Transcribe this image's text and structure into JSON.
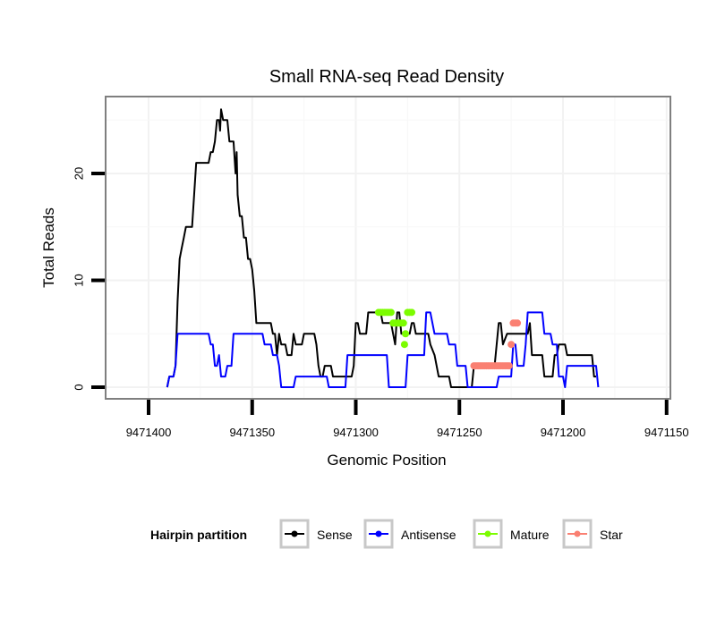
{
  "chart_data": {
    "type": "line",
    "title": "Small RNA-seq Read Density",
    "xlabel": "Genomic Position",
    "ylabel": "Total Reads",
    "x_reversed": true,
    "xlim": [
      9471410,
      9471147
    ],
    "ylim": [
      -1,
      27
    ],
    "x_ticks": [
      9471400,
      9471350,
      9471300,
      9471250,
      9471200,
      9471150
    ],
    "x_tick_labels": [
      "9471400",
      "9471350",
      "9471300",
      "9471250",
      "9471200",
      "9471150"
    ],
    "y_ticks": [
      0,
      10,
      20
    ],
    "y_tick_labels": [
      "0",
      "10",
      "20"
    ],
    "grid": true,
    "legend": {
      "title": "Hairpin partition",
      "position": "bottom",
      "entries": [
        {
          "name": "Sense",
          "color": "#000000"
        },
        {
          "name": "Antisense",
          "color": "#0000ff"
        },
        {
          "name": "Mature",
          "color": "#7cfc00"
        },
        {
          "name": "Star",
          "color": "#fa8072"
        }
      ]
    },
    "series": [
      {
        "name": "Sense",
        "color": "#000000",
        "kind": "line",
        "points": [
          [
            9471391,
            0
          ],
          [
            9471390,
            1
          ],
          [
            9471388,
            1
          ],
          [
            9471387,
            2
          ],
          [
            9471386,
            8
          ],
          [
            9471385,
            12
          ],
          [
            9471384,
            13
          ],
          [
            9471383,
            14
          ],
          [
            9471382,
            15
          ],
          [
            9471379,
            15
          ],
          [
            9471378,
            18
          ],
          [
            9471377,
            21
          ],
          [
            9471371,
            21
          ],
          [
            9471370,
            22
          ],
          [
            9471369,
            22
          ],
          [
            9471368,
            23
          ],
          [
            9471367,
            25
          ],
          [
            9471366,
            25
          ],
          [
            9471365.5,
            24
          ],
          [
            9471365,
            26
          ],
          [
            9471364,
            25
          ],
          [
            9471362,
            25
          ],
          [
            9471361,
            23
          ],
          [
            9471359,
            23
          ],
          [
            9471358,
            20
          ],
          [
            9471357.5,
            22
          ],
          [
            9471357,
            18
          ],
          [
            9471356,
            16
          ],
          [
            9471355,
            16
          ],
          [
            9471354,
            14
          ],
          [
            9471353,
            14
          ],
          [
            9471352,
            12
          ],
          [
            9471351,
            12
          ],
          [
            9471350,
            11
          ],
          [
            9471349,
            9
          ],
          [
            9471348,
            6
          ],
          [
            9471341,
            6
          ],
          [
            9471340,
            5
          ],
          [
            9471339,
            5
          ],
          [
            9471338,
            3
          ],
          [
            9471337,
            5
          ],
          [
            9471336,
            4
          ],
          [
            9471334,
            4
          ],
          [
            9471333,
            3
          ],
          [
            9471331,
            3
          ],
          [
            9471330,
            5
          ],
          [
            9471329,
            4
          ],
          [
            9471326,
            4
          ],
          [
            9471325,
            5
          ],
          [
            9471320,
            5
          ],
          [
            9471319,
            4
          ],
          [
            9471318,
            2
          ],
          [
            9471317,
            1
          ],
          [
            9471316,
            1
          ],
          [
            9471315,
            2
          ],
          [
            9471312,
            2
          ],
          [
            9471311,
            1
          ],
          [
            9471302,
            1
          ],
          [
            9471301,
            2
          ],
          [
            9471300,
            6
          ],
          [
            9471299,
            6
          ],
          [
            9471298,
            5
          ],
          [
            9471295,
            5
          ],
          [
            9471294,
            7
          ],
          [
            9471288,
            7
          ],
          [
            9471287,
            6
          ],
          [
            9471283,
            6
          ],
          [
            9471282,
            5
          ],
          [
            9471281,
            4
          ],
          [
            9471280,
            7
          ],
          [
            9471279,
            7
          ],
          [
            9471278,
            5
          ],
          [
            9471274,
            5
          ],
          [
            9471273,
            6
          ],
          [
            9471272,
            6
          ],
          [
            9471271,
            5
          ],
          [
            9471265,
            5
          ],
          [
            9471264,
            4
          ],
          [
            9471262,
            3
          ],
          [
            9471260,
            1
          ],
          [
            9471255,
            1
          ],
          [
            9471254,
            0
          ],
          [
            9471244,
            0
          ],
          [
            9471243,
            2
          ],
          [
            9471233,
            2
          ],
          [
            9471232,
            4
          ],
          [
            9471231,
            6
          ],
          [
            9471230,
            6
          ],
          [
            9471229,
            4
          ],
          [
            9471227,
            5
          ],
          [
            9471217,
            5
          ],
          [
            9471216,
            6
          ],
          [
            9471215,
            3
          ],
          [
            9471210,
            3
          ],
          [
            9471209,
            1
          ],
          [
            9471205,
            1
          ],
          [
            9471204,
            3
          ],
          [
            9471203,
            3
          ],
          [
            9471202,
            4
          ],
          [
            9471199,
            4
          ],
          [
            9471198,
            3
          ],
          [
            9471186,
            3
          ],
          [
            9471185,
            1
          ],
          [
            9471184,
            1
          ]
        ]
      },
      {
        "name": "Antisense",
        "color": "#0000ff",
        "kind": "line",
        "points": [
          [
            9471391,
            0
          ],
          [
            9471390,
            1
          ],
          [
            9471388,
            1
          ],
          [
            9471387,
            2
          ],
          [
            9471386,
            5
          ],
          [
            9471371,
            5
          ],
          [
            9471370,
            4
          ],
          [
            9471369,
            4
          ],
          [
            9471368,
            2
          ],
          [
            9471367,
            2
          ],
          [
            9471366,
            3
          ],
          [
            9471365,
            1
          ],
          [
            9471363,
            1
          ],
          [
            9471362,
            2
          ],
          [
            9471360,
            2
          ],
          [
            9471359,
            5
          ],
          [
            9471345,
            5
          ],
          [
            9471344,
            4
          ],
          [
            9471341,
            4
          ],
          [
            9471340,
            3
          ],
          [
            9471338,
            3
          ],
          [
            9471337,
            2
          ],
          [
            9471336,
            0
          ],
          [
            9471330,
            0
          ],
          [
            9471329,
            1
          ],
          [
            9471314,
            1
          ],
          [
            9471313,
            0
          ],
          [
            9471305,
            0
          ],
          [
            9471304,
            3
          ],
          [
            9471285,
            3
          ],
          [
            9471284,
            0
          ],
          [
            9471276,
            0
          ],
          [
            9471275,
            3
          ],
          [
            9471267,
            3
          ],
          [
            9471266,
            7
          ],
          [
            9471264,
            7
          ],
          [
            9471262,
            5
          ],
          [
            9471256,
            5
          ],
          [
            9471255,
            4
          ],
          [
            9471252,
            4
          ],
          [
            9471251,
            2
          ],
          [
            9471247,
            2
          ],
          [
            9471246,
            0
          ],
          [
            9471232,
            0
          ],
          [
            9471231,
            1
          ],
          [
            9471225,
            1
          ],
          [
            9471224,
            4
          ],
          [
            9471223,
            4
          ],
          [
            9471222,
            2
          ],
          [
            9471219,
            2
          ],
          [
            9471218,
            4
          ],
          [
            9471217,
            7
          ],
          [
            9471210,
            7
          ],
          [
            9471209,
            5
          ],
          [
            9471206,
            5
          ],
          [
            9471205,
            4
          ],
          [
            9471203,
            4
          ],
          [
            9471202,
            1
          ],
          [
            9471200,
            1
          ],
          [
            9471199,
            0
          ],
          [
            9471198,
            2
          ],
          [
            9471184,
            2
          ],
          [
            9471183,
            0
          ]
        ]
      },
      {
        "name": "Mature",
        "color": "#7cfc00",
        "kind": "points",
        "points": [
          [
            9471289,
            7
          ],
          [
            9471288,
            7
          ],
          [
            9471287,
            7
          ],
          [
            9471286,
            7
          ],
          [
            9471285,
            7
          ],
          [
            9471284,
            7
          ],
          [
            9471283,
            7
          ],
          [
            9471282,
            6
          ],
          [
            9471281,
            6
          ],
          [
            9471280,
            6
          ],
          [
            9471279,
            6
          ],
          [
            9471278,
            6
          ],
          [
            9471277,
            6
          ],
          [
            9471276,
            5
          ],
          [
            9471276.5,
            4
          ],
          [
            9471275,
            7
          ],
          [
            9471274,
            7
          ],
          [
            9471273,
            7
          ]
        ]
      },
      {
        "name": "Star",
        "color": "#fa8072",
        "kind": "points",
        "points": [
          [
            9471243,
            2
          ],
          [
            9471242,
            2
          ],
          [
            9471241,
            2
          ],
          [
            9471240,
            2
          ],
          [
            9471239,
            2
          ],
          [
            9471238,
            2
          ],
          [
            9471237,
            2
          ],
          [
            9471236,
            2
          ],
          [
            9471235,
            2
          ],
          [
            9471234,
            2
          ],
          [
            9471233,
            2
          ],
          [
            9471232,
            2
          ],
          [
            9471231,
            2
          ],
          [
            9471230,
            2
          ],
          [
            9471229,
            2
          ],
          [
            9471228,
            2
          ],
          [
            9471227,
            2
          ],
          [
            9471226,
            2
          ],
          [
            9471225,
            4
          ],
          [
            9471224,
            6
          ],
          [
            9471223,
            6
          ],
          [
            9471222,
            6
          ]
        ]
      }
    ]
  }
}
